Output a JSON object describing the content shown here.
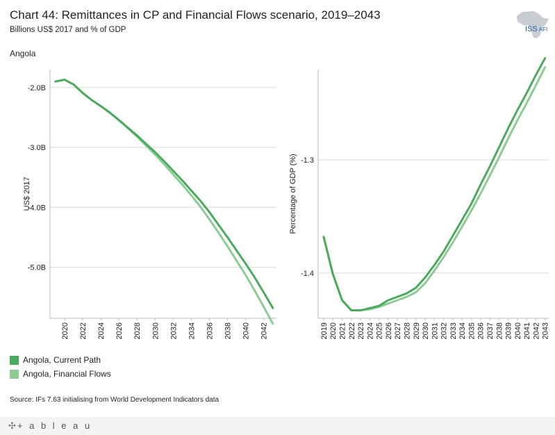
{
  "header": {
    "title": "Chart 44: Remittances in CP and Financial Flows scenario, 2019–2043",
    "subtitle": "Billions US$ 2017 and % of GDP",
    "country": "Angola"
  },
  "logo": {
    "main": "ISS",
    "sub": "AFI"
  },
  "legend": [
    {
      "label": "Angola,  Current Path",
      "color": "#4caa5e"
    },
    {
      "label": "Angola,  Financial Flows",
      "color": "#8ccc93"
    }
  ],
  "source": "Source: IFs 7.63 initialising from World Development Indicators data",
  "footer": {
    "brand": "+ a b l e a u",
    "cross": "✣"
  },
  "colors": {
    "current_path": "#4caa5e",
    "financial_flows": "#8ccc93",
    "grid": "#d9d9d9",
    "axis": "#bbbbbb"
  },
  "chart_data": [
    {
      "type": "line",
      "title": "",
      "xlabel": "",
      "ylabel": "US$ 2017",
      "ylim": [
        -5.85,
        -1.7
      ],
      "xlim": [
        2018.4,
        2043.4
      ],
      "yticks": [
        -2.0,
        -3.0,
        -4.0,
        -5.0
      ],
      "ytick_labels": [
        "-2.0B",
        "-3.0B",
        "-4.0B",
        "-5.0B"
      ],
      "xticks": [
        2020,
        2022,
        2024,
        2026,
        2028,
        2030,
        2032,
        2034,
        2036,
        2038,
        2040,
        2042
      ],
      "xtick_labels": [
        "2020",
        "2022",
        "2024",
        "2026",
        "2028",
        "2030",
        "2032",
        "2034",
        "2036",
        "2038",
        "2040",
        "2042"
      ],
      "x": [
        2019,
        2020,
        2021,
        2022,
        2023,
        2024,
        2025,
        2026,
        2027,
        2028,
        2029,
        2030,
        2031,
        2032,
        2033,
        2034,
        2035,
        2036,
        2037,
        2038,
        2039,
        2040,
        2041,
        2042,
        2043
      ],
      "series": [
        {
          "name": "Angola,  Current Path",
          "values": [
            -1.9,
            -1.87,
            -1.95,
            -2.09,
            -2.21,
            -2.31,
            -2.42,
            -2.54,
            -2.67,
            -2.8,
            -2.94,
            -3.08,
            -3.23,
            -3.39,
            -3.55,
            -3.72,
            -3.89,
            -4.08,
            -4.29,
            -4.5,
            -4.72,
            -4.94,
            -5.17,
            -5.42,
            -5.68
          ]
        },
        {
          "name": "Angola,  Financial Flows",
          "values": [
            -1.9,
            -1.87,
            -1.95,
            -2.09,
            -2.21,
            -2.31,
            -2.42,
            -2.55,
            -2.68,
            -2.82,
            -2.97,
            -3.12,
            -3.28,
            -3.45,
            -3.62,
            -3.8,
            -3.99,
            -4.2,
            -4.42,
            -4.65,
            -4.89,
            -5.13,
            -5.39,
            -5.66,
            -5.94
          ]
        }
      ]
    },
    {
      "type": "line",
      "title": "",
      "xlabel": "",
      "ylabel": "Percentage of GDP (%)",
      "ylim": [
        -1.44,
        -1.22
      ],
      "xlim": [
        2018.4,
        2043.4
      ],
      "yticks": [
        -1.3,
        -1.4
      ],
      "ytick_labels": [
        "-1.3",
        "-1.4"
      ],
      "xticks": [
        2019,
        2020,
        2021,
        2022,
        2023,
        2024,
        2025,
        2026,
        2027,
        2028,
        2029,
        2030,
        2031,
        2032,
        2033,
        2034,
        2035,
        2036,
        2037,
        2038,
        2039,
        2040,
        2041,
        2042,
        2043
      ],
      "xtick_labels": [
        "2019",
        "2020",
        "2021",
        "2022",
        "2023",
        "2024",
        "2025",
        "2026",
        "2027",
        "2028",
        "2029",
        "2030",
        "2031",
        "2032",
        "2033",
        "2034",
        "2035",
        "2036",
        "2037",
        "2038",
        "2039",
        "2040",
        "2041",
        "2042",
        "2043"
      ],
      "x": [
        2019,
        2020,
        2021,
        2022,
        2023,
        2024,
        2025,
        2026,
        2027,
        2028,
        2029,
        2030,
        2031,
        2032,
        2033,
        2034,
        2035,
        2036,
        2037,
        2038,
        2039,
        2040,
        2041,
        2042,
        2043
      ],
      "series": [
        {
          "name": "Angola,  Current Path",
          "values": [
            -1.368,
            -1.401,
            -1.424,
            -1.433,
            -1.433,
            -1.431,
            -1.429,
            -1.424,
            -1.421,
            -1.418,
            -1.413,
            -1.404,
            -1.393,
            -1.381,
            -1.367,
            -1.353,
            -1.339,
            -1.322,
            -1.306,
            -1.289,
            -1.272,
            -1.256,
            -1.241,
            -1.225,
            -1.21
          ]
        },
        {
          "name": "Angola,  Financial Flows",
          "values": [
            -1.368,
            -1.401,
            -1.424,
            -1.433,
            -1.433,
            -1.432,
            -1.43,
            -1.427,
            -1.424,
            -1.421,
            -1.417,
            -1.409,
            -1.398,
            -1.386,
            -1.373,
            -1.359,
            -1.345,
            -1.33,
            -1.314,
            -1.298,
            -1.281,
            -1.265,
            -1.25,
            -1.234,
            -1.218
          ]
        }
      ]
    }
  ]
}
